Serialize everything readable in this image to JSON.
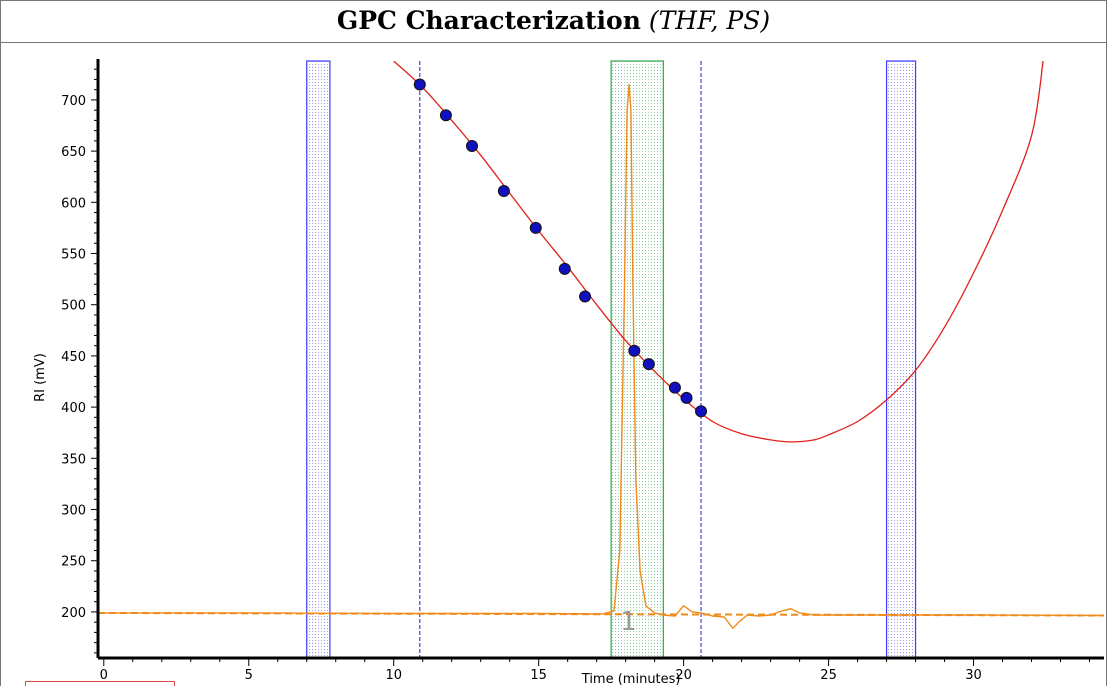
{
  "title": {
    "main": "GPC Characterization",
    "sub": "(THF, PS)"
  },
  "colors": {
    "calibration_curve": "#e0201c",
    "calibration_points_fill": "#1010c0",
    "chromatogram": "#f08a1a",
    "baseline": "#f08a1a",
    "exclusion_regions": "#3c3cff",
    "integration_region": "#2fa84a",
    "limit_lines": "#2020d0",
    "peak_label": "#9a9a9a"
  },
  "chart_data": {
    "type": "line",
    "title": "GPC Characterization (THF, PS)",
    "xlabel": "Time (minutes)",
    "ylabel": "RI (mV)",
    "xlim": [
      -0.2,
      34.5
    ],
    "ylim": [
      155,
      738
    ],
    "x_ticks": [
      0,
      5,
      10,
      15,
      20,
      25,
      30
    ],
    "y_ticks": [
      200,
      250,
      300,
      350,
      400,
      450,
      500,
      550,
      600,
      650,
      700
    ],
    "grid": false,
    "calibration_points": {
      "x": [
        10.9,
        11.8,
        12.7,
        13.8,
        14.9,
        15.9,
        16.6,
        18.3,
        18.8,
        19.7,
        20.1,
        20.6
      ],
      "y": [
        715,
        685,
        655,
        611,
        575,
        535,
        508,
        455,
        442,
        419,
        409,
        396
      ]
    },
    "calibration_curve": {
      "x": [
        10.0,
        11.0,
        12.0,
        13.0,
        14.0,
        15.0,
        16.0,
        17.0,
        18.0,
        19.0,
        20.0,
        21.0,
        22.0,
        23.0,
        23.7,
        24.5,
        25.0,
        26.0,
        27.0,
        28.0,
        29.0,
        30.0,
        31.0,
        32.0,
        32.4
      ],
      "y": [
        738,
        712,
        680,
        646,
        609,
        572,
        537,
        500,
        465,
        435,
        408,
        386,
        374,
        368,
        366,
        368,
        373,
        386,
        407,
        436,
        478,
        531,
        592,
        665,
        738
      ]
    },
    "chromatogram": {
      "x": [
        -0.2,
        5,
        10,
        15,
        17.2,
        17.6,
        17.8,
        17.95,
        18.05,
        18.12,
        18.18,
        18.25,
        18.35,
        18.5,
        18.7,
        19.0,
        19.3,
        19.7,
        20.0,
        20.3,
        20.6,
        21.0,
        21.4,
        21.7,
        21.9,
        22.2,
        22.6,
        23.0,
        23.4,
        23.7,
        24.0,
        24.5,
        30,
        34.5
      ],
      "y": [
        199,
        199,
        198.5,
        198.5,
        198,
        201,
        260,
        500,
        690,
        715,
        690,
        520,
        330,
        240,
        206,
        199,
        197,
        196,
        206,
        200,
        199,
        196,
        195,
        184,
        190,
        197,
        196,
        197,
        201,
        203,
        199,
        197,
        197,
        196.5
      ]
    },
    "baseline": {
      "x": [
        -0.2,
        34.5
      ],
      "y": [
        199,
        196.5
      ]
    },
    "exclusion_regions": [
      {
        "from": 7.0,
        "to": 7.8
      },
      {
        "from": 27.0,
        "to": 28.0
      }
    ],
    "integration_region": {
      "from": 17.5,
      "to": 19.3
    },
    "limit_lines": [
      10.9,
      20.6
    ],
    "peak_labels": [
      {
        "text": "1",
        "x": 18.1,
        "y": 192
      }
    ]
  }
}
